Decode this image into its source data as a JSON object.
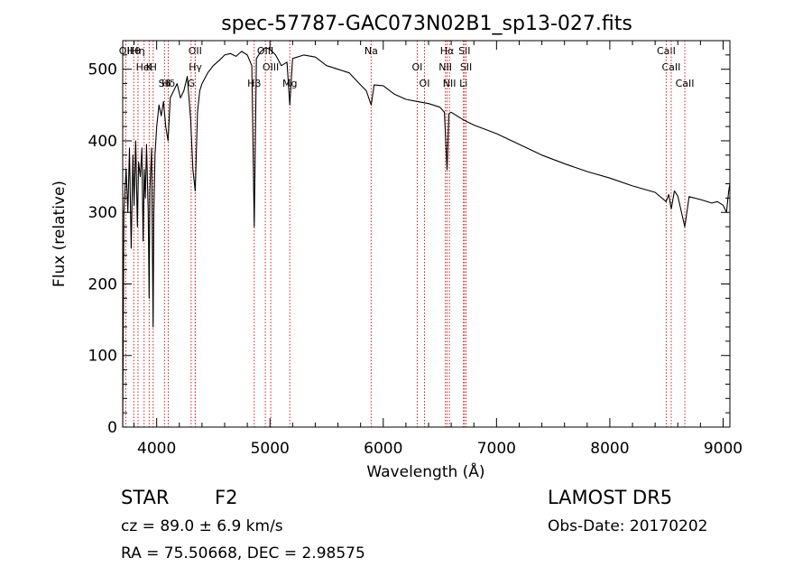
{
  "chart_data": {
    "type": "line",
    "title": "spec-57787-GAC073N02B1_sp13-027.fits",
    "xlabel": "Wavelength (Å)",
    "ylabel": "Flux (relative)",
    "xlim": [
      3700,
      9060
    ],
    "ylim": [
      0,
      540
    ],
    "x_ticks": [
      4000,
      5000,
      6000,
      7000,
      8000,
      9000
    ],
    "y_ticks": [
      0,
      100,
      200,
      300,
      400,
      500
    ],
    "grid": false,
    "series": [
      {
        "color": "#000000",
        "x": [
          3700,
          3705,
          3710,
          3720,
          3730,
          3745,
          3760,
          3775,
          3790,
          3800,
          3815,
          3830,
          3840,
          3855,
          3870,
          3880,
          3890,
          3900,
          3910,
          3925,
          3933,
          3940,
          3955,
          3968,
          3975,
          3985,
          4000,
          4020,
          4040,
          4060,
          4080,
          4101,
          4120,
          4150,
          4180,
          4210,
          4240,
          4270,
          4300,
          4320,
          4340,
          4360,
          4380,
          4400,
          4450,
          4500,
          4550,
          4600,
          4650,
          4700,
          4750,
          4800,
          4840,
          4861,
          4880,
          4920,
          4960,
          5000,
          5050,
          5100,
          5150,
          5175,
          5200,
          5300,
          5400,
          5500,
          5600,
          5700,
          5800,
          5850,
          5893,
          5920,
          6000,
          6100,
          6200,
          6300,
          6400,
          6500,
          6540,
          6563,
          6580,
          6600,
          6700,
          6800,
          7000,
          7200,
          7400,
          7600,
          7800,
          8000,
          8200,
          8400,
          8498,
          8520,
          8542,
          8570,
          8600,
          8662,
          8700,
          8800,
          8900,
          8950,
          9000,
          9030,
          9050,
          9060
        ],
        "y": [
          0,
          130,
          300,
          330,
          360,
          300,
          390,
          250,
          380,
          310,
          400,
          280,
          370,
          350,
          390,
          260,
          360,
          320,
          395,
          300,
          180,
          330,
          390,
          140,
          300,
          380,
          420,
          450,
          435,
          455,
          420,
          400,
          460,
          470,
          480,
          460,
          470,
          490,
          430,
          360,
          330,
          440,
          470,
          480,
          495,
          505,
          512,
          520,
          522,
          518,
          525,
          520,
          505,
          280,
          515,
          525,
          530,
          528,
          520,
          505,
          510,
          450,
          515,
          520,
          517,
          505,
          500,
          495,
          478,
          470,
          450,
          478,
          477,
          465,
          458,
          455,
          452,
          447,
          440,
          360,
          438,
          440,
          430,
          422,
          410,
          395,
          380,
          368,
          357,
          348,
          337,
          328,
          315,
          325,
          305,
          330,
          323,
          280,
          322,
          318,
          313,
          315,
          310,
          300,
          330,
          340
        ]
      }
    ],
    "line_markers": [
      {
        "name": "Hθ",
        "x": 3798
      },
      {
        "name": "K",
        "x": 3934
      },
      {
        "name": "Hδ",
        "x": 4102
      },
      {
        "name": "OII",
        "x": 3727
      },
      {
        "name": "HeI",
        "x": 3889
      },
      {
        "name": "SII",
        "x": 4069
      },
      {
        "name": "OII",
        "x": 4340
      },
      {
        "name": "Hγ",
        "x": 4341
      },
      {
        "name": "G",
        "x": 4304
      },
      {
        "name": "Hη",
        "x": 3835
      },
      {
        "name": "H",
        "x": 3969
      },
      {
        "name": "Hβ",
        "x": 4861
      },
      {
        "name": "OIII",
        "x": 4959
      },
      {
        "name": "OIII",
        "x": 5007
      },
      {
        "name": "Mg",
        "x": 5175
      },
      {
        "name": "Na",
        "x": 5893
      },
      {
        "name": "OI",
        "x": 6300
      },
      {
        "name": "OI",
        "x": 6364
      },
      {
        "name": "Hα",
        "x": 6563
      },
      {
        "name": "NII",
        "x": 6548
      },
      {
        "name": "NII",
        "x": 6584
      },
      {
        "name": "SII",
        "x": 6717
      },
      {
        "name": "SII",
        "x": 6731
      },
      {
        "name": "Li",
        "x": 6708
      },
      {
        "name": "CaII",
        "x": 8498
      },
      {
        "name": "CaII",
        "x": 8542
      },
      {
        "name": "CaII",
        "x": 8662
      }
    ]
  },
  "info": {
    "object_class": "STAR",
    "subclass": "F2",
    "survey": "LAMOST DR5",
    "redshift": "cz = 89.0 ± 6.9 km/s",
    "obs_date": "Obs-Date: 20170202",
    "coords": "RA =  75.50668, DEC =   2.98575"
  }
}
